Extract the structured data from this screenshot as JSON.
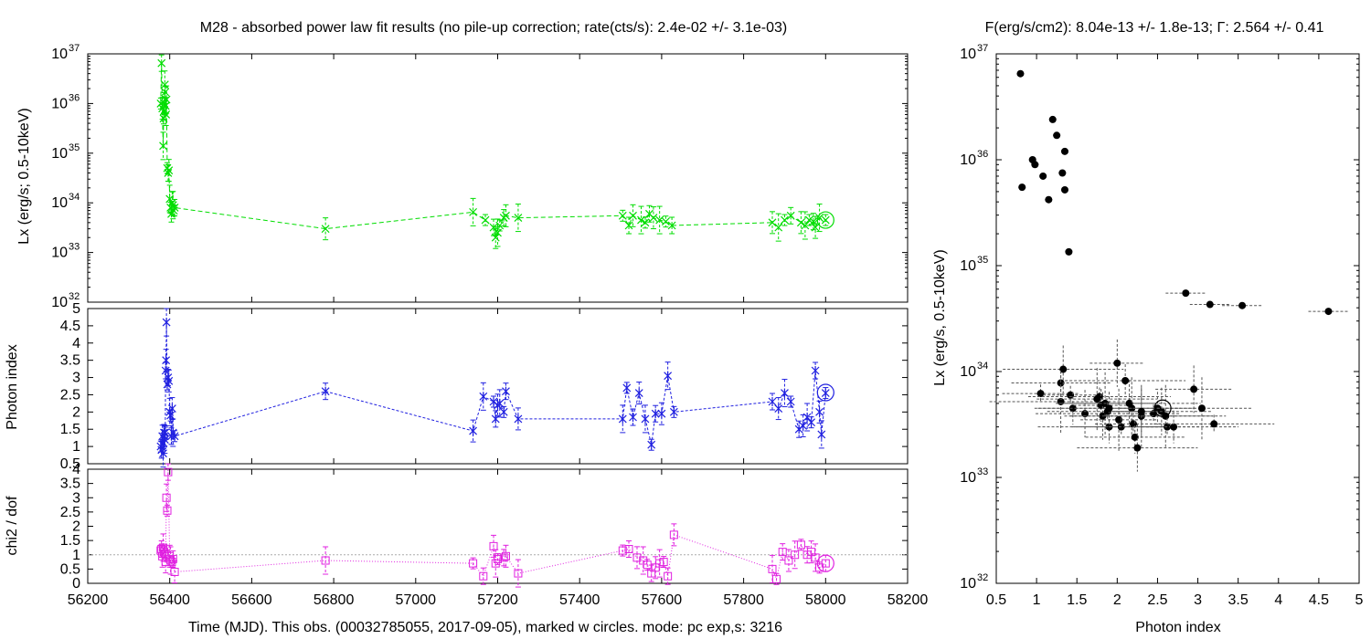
{
  "left_title": "M28  - absorbed power law fit results (no pile-up correction; rate(cts/s): 2.4e-02 +/- 3.1e-03)",
  "right_title": "F(erg/s/cm2): 8.04e-13 +/- 1.8e-13; Γ: 2.564 +/- 0.41",
  "x_label_time": "Time (MJD). This obs. (00032785055, 2017-09-05), marked w circles. mode: pc exp,s: 3216",
  "x_label_index": "Photon index",
  "colors": {
    "lx": "#00dd00",
    "index": "#2020e0",
    "chi2": "#e020e0",
    "scatter": "#000000",
    "ref": "#aaaaaa"
  },
  "chart_data": [
    {
      "type": "line",
      "ylabel": "Lx (erg/s; 0.5-10keV)",
      "ylog": true,
      "ylim": [
        1e+32,
        1e+37
      ],
      "xlim": [
        56200,
        58200
      ],
      "y_ticks": [
        {
          "v": 1e+32,
          "e": "32"
        },
        {
          "v": 1e+33,
          "e": "33"
        },
        {
          "v": 1e+34,
          "e": "34"
        },
        {
          "v": 1e+35,
          "e": "35"
        },
        {
          "v": 1e+36,
          "e": "36"
        },
        {
          "v": 1e+37,
          "e": "37"
        }
      ],
      "x_ticks": [
        56200,
        56400,
        56600,
        56800,
        57000,
        57200,
        57400,
        57600,
        57800,
        58000,
        58200
      ],
      "points": [
        [
          56378,
          1e+36
        ],
        [
          56380,
          6.5e+36
        ],
        [
          56382,
          8e+35
        ],
        [
          56384,
          1.4e+35
        ],
        [
          56385,
          5e+35
        ],
        [
          56386,
          7e+35
        ],
        [
          56387,
          1e+36
        ],
        [
          56388,
          2.4e+36
        ],
        [
          56389,
          1.7e+36
        ],
        [
          56390,
          9e+35
        ],
        [
          56391,
          6e+35
        ],
        [
          56392,
          1.2e+36
        ],
        [
          56394,
          5e+34
        ],
        [
          56396,
          4e+34
        ],
        [
          56398,
          4.5e+34
        ],
        [
          56400,
          1.2e+34
        ],
        [
          56402,
          8e+33
        ],
        [
          56404,
          6e+33
        ],
        [
          56406,
          1e+34
        ],
        [
          56408,
          9e+33
        ],
        [
          56410,
          7e+33
        ],
        [
          56412,
          8e+33
        ],
        [
          56780,
          3e+33
        ],
        [
          57140,
          6.5e+33
        ],
        [
          57170,
          4.5e+33
        ],
        [
          57190,
          3.2e+33
        ],
        [
          57195,
          2e+33
        ],
        [
          57200,
          2.5e+33
        ],
        [
          57205,
          3.5e+33
        ],
        [
          57215,
          5e+33
        ],
        [
          57220,
          5.5e+33
        ],
        [
          57250,
          5e+33
        ],
        [
          57505,
          5.5e+33
        ],
        [
          57520,
          3.5e+33
        ],
        [
          57530,
          5.5e+33
        ],
        [
          57550,
          4.5e+33
        ],
        [
          57560,
          4e+33
        ],
        [
          57570,
          6e+33
        ],
        [
          57580,
          5e+33
        ],
        [
          57595,
          4.5e+33
        ],
        [
          57610,
          4.2e+33
        ],
        [
          57625,
          3.5e+33
        ],
        [
          57870,
          4e+33
        ],
        [
          57885,
          3.2e+33
        ],
        [
          57900,
          4.5e+33
        ],
        [
          57915,
          5.5e+33
        ],
        [
          57940,
          4e+33
        ],
        [
          57950,
          3.5e+33
        ],
        [
          57960,
          4.5e+33
        ],
        [
          57970,
          4.2e+33
        ],
        [
          57975,
          3.2e+33
        ],
        [
          57985,
          5e+33
        ],
        [
          58000,
          4.5e+33
        ]
      ],
      "marked": [
        58000,
        4.5e+33
      ]
    },
    {
      "type": "line",
      "ylabel": "Photon index",
      "ylim": [
        0.5,
        5
      ],
      "xlim": [
        56200,
        58200
      ],
      "y_ticks": [
        0.5,
        1,
        1.5,
        2,
        2.5,
        3,
        3.5,
        4,
        4.5,
        5
      ],
      "x_ticks": [
        56200,
        56400,
        56600,
        56800,
        57000,
        57200,
        57400,
        57600,
        57800,
        58000,
        58200
      ],
      "points": [
        [
          56378,
          1.0
        ],
        [
          56380,
          0.9
        ],
        [
          56382,
          1.3
        ],
        [
          56384,
          0.8
        ],
        [
          56385,
          1.1
        ],
        [
          56386,
          1.4
        ],
        [
          56387,
          1.3
        ],
        [
          56388,
          1.2
        ],
        [
          56389,
          1.4
        ],
        [
          56390,
          3.2
        ],
        [
          56391,
          3.5
        ],
        [
          56392,
          4.6
        ],
        [
          56394,
          2.8
        ],
        [
          56396,
          3.0
        ],
        [
          56398,
          2.9
        ],
        [
          56400,
          2.0
        ],
        [
          56402,
          1.9
        ],
        [
          56404,
          1.3
        ],
        [
          56406,
          2.1
        ],
        [
          56408,
          1.4
        ],
        [
          56412,
          1.3
        ],
        [
          56780,
          2.6
        ],
        [
          57140,
          1.45
        ],
        [
          57165,
          2.45
        ],
        [
          57190,
          2.3
        ],
        [
          57195,
          1.8
        ],
        [
          57200,
          2.2
        ],
        [
          57205,
          2.25
        ],
        [
          57215,
          2.0
        ],
        [
          57220,
          2.6
        ],
        [
          57250,
          1.8
        ],
        [
          57505,
          1.8
        ],
        [
          57515,
          2.7
        ],
        [
          57530,
          1.85
        ],
        [
          57545,
          2.55
        ],
        [
          57560,
          1.8
        ],
        [
          57575,
          1.05
        ],
        [
          57585,
          1.95
        ],
        [
          57600,
          1.95
        ],
        [
          57615,
          3.05
        ],
        [
          57630,
          2.0
        ],
        [
          57870,
          2.3
        ],
        [
          57885,
          2.1
        ],
        [
          57900,
          2.55
        ],
        [
          57915,
          2.3
        ],
        [
          57935,
          1.5
        ],
        [
          57945,
          1.6
        ],
        [
          57955,
          1.85
        ],
        [
          57965,
          1.7
        ],
        [
          57975,
          3.2
        ],
        [
          57985,
          2.0
        ],
        [
          57990,
          1.35
        ],
        [
          58000,
          2.55
        ]
      ],
      "marked": [
        58000,
        2.564
      ]
    },
    {
      "type": "line",
      "ylabel": "chi2 / dof",
      "ylim": [
        0,
        4
      ],
      "xlim": [
        56200,
        58200
      ],
      "reference_line": 1,
      "y_ticks": [
        0,
        0.5,
        1,
        1.5,
        2,
        2.5,
        3,
        3.5,
        4
      ],
      "x_ticks": [
        56200,
        56400,
        56600,
        56800,
        57000,
        57200,
        57400,
        57600,
        57800,
        58000,
        58200
      ],
      "points": [
        [
          56378,
          1.15
        ],
        [
          56380,
          1.2
        ],
        [
          56382,
          0.95
        ],
        [
          56384,
          1.25
        ],
        [
          56386,
          1.1
        ],
        [
          56388,
          1.05
        ],
        [
          56390,
          0.75
        ],
        [
          56392,
          3.0
        ],
        [
          56394,
          2.55
        ],
        [
          56396,
          3.9
        ],
        [
          56400,
          0.95
        ],
        [
          56402,
          0.8
        ],
        [
          56405,
          0.75
        ],
        [
          56408,
          0.85
        ],
        [
          56412,
          0.4
        ],
        [
          56780,
          0.8
        ],
        [
          57140,
          0.7
        ],
        [
          57165,
          0.25
        ],
        [
          57190,
          1.3
        ],
        [
          57195,
          0.7
        ],
        [
          57200,
          0.85
        ],
        [
          57215,
          0.9
        ],
        [
          57220,
          0.95
        ],
        [
          57250,
          0.35
        ],
        [
          57505,
          1.15
        ],
        [
          57520,
          1.2
        ],
        [
          57540,
          0.9
        ],
        [
          57555,
          0.8
        ],
        [
          57565,
          0.65
        ],
        [
          57575,
          0.35
        ],
        [
          57585,
          0.55
        ],
        [
          57595,
          0.7
        ],
        [
          57605,
          0.75
        ],
        [
          57615,
          0.25
        ],
        [
          57630,
          1.7
        ],
        [
          57870,
          0.5
        ],
        [
          57880,
          0.15
        ],
        [
          57895,
          1.1
        ],
        [
          57910,
          0.8
        ],
        [
          57925,
          1.0
        ],
        [
          57940,
          1.35
        ],
        [
          57955,
          1.0
        ],
        [
          57965,
          1.1
        ],
        [
          57975,
          0.9
        ],
        [
          57985,
          0.55
        ],
        [
          58000,
          0.7
        ]
      ],
      "marked": [
        58000,
        0.7
      ]
    },
    {
      "type": "scatter",
      "ylabel": "Lx (erg/s, 0.5-10keV)",
      "xlabel": "Photon index",
      "ylog": true,
      "xlim": [
        0.5,
        5
      ],
      "ylim": [
        1e+32,
        1e+37
      ],
      "x_ticks": [
        0.5,
        1,
        1.5,
        2,
        2.5,
        3,
        3.5,
        4,
        4.5,
        5
      ],
      "y_ticks": [
        {
          "v": 1e+32,
          "e": "32"
        },
        {
          "v": 1e+33,
          "e": "33"
        },
        {
          "v": 1e+34,
          "e": "34"
        },
        {
          "v": 1e+35,
          "e": "35"
        },
        {
          "v": 1e+36,
          "e": "36"
        },
        {
          "v": 1e+37,
          "e": "37"
        }
      ],
      "points": [
        [
          0.8,
          6.5e+36
        ],
        [
          1.2,
          2.4e+36
        ],
        [
          1.25,
          1.7e+36
        ],
        [
          0.95,
          1e+36
        ],
        [
          0.98,
          9e+35
        ],
        [
          1.35,
          1.2e+36
        ],
        [
          1.08,
          7e+35
        ],
        [
          1.32,
          7.5e+35
        ],
        [
          0.82,
          5.5e+35
        ],
        [
          1.15,
          4.2e+35
        ],
        [
          1.35,
          5.2e+35
        ],
        [
          1.4,
          1.35e+35
        ],
        [
          2.85,
          5.5e+34
        ],
        [
          3.15,
          4.3e+34
        ],
        [
          3.55,
          4.2e+34
        ],
        [
          4.62,
          3.7e+34
        ],
        [
          1.05,
          6.2e+33
        ],
        [
          1.3,
          7.8e+33
        ],
        [
          1.33,
          1.05e+34
        ],
        [
          1.3,
          5.2e+33
        ],
        [
          1.42,
          6e+33
        ],
        [
          1.45,
          4.5e+33
        ],
        [
          1.6,
          4e+33
        ],
        [
          1.75,
          5.5e+33
        ],
        [
          1.78,
          5.8e+33
        ],
        [
          1.8,
          4.8e+33
        ],
        [
          1.82,
          3.8e+33
        ],
        [
          1.85,
          5e+33
        ],
        [
          1.88,
          4.2e+33
        ],
        [
          1.9,
          3e+33
        ],
        [
          2.0,
          1.2e+34
        ],
        [
          2.02,
          3.5e+33
        ],
        [
          2.05,
          3e+33
        ],
        [
          2.1,
          8.2e+33
        ],
        [
          2.15,
          5e+33
        ],
        [
          2.18,
          4.5e+33
        ],
        [
          2.2,
          3.2e+33
        ],
        [
          2.22,
          2.4e+33
        ],
        [
          2.25,
          1.9e+33
        ],
        [
          2.3,
          3.8e+33
        ],
        [
          2.45,
          4e+33
        ],
        [
          2.5,
          4.5e+33
        ],
        [
          2.55,
          4.2e+33
        ],
        [
          2.6,
          3.8e+33
        ],
        [
          2.62,
          3e+33
        ],
        [
          2.7,
          3e+33
        ],
        [
          2.95,
          6.8e+33
        ],
        [
          3.05,
          4.5e+33
        ],
        [
          3.2,
          3.2e+33
        ],
        [
          1.9,
          4.5e+33
        ],
        [
          2.3,
          4.2e+33
        ]
      ],
      "marked": [
        2.564,
        4.5e+33
      ]
    }
  ]
}
